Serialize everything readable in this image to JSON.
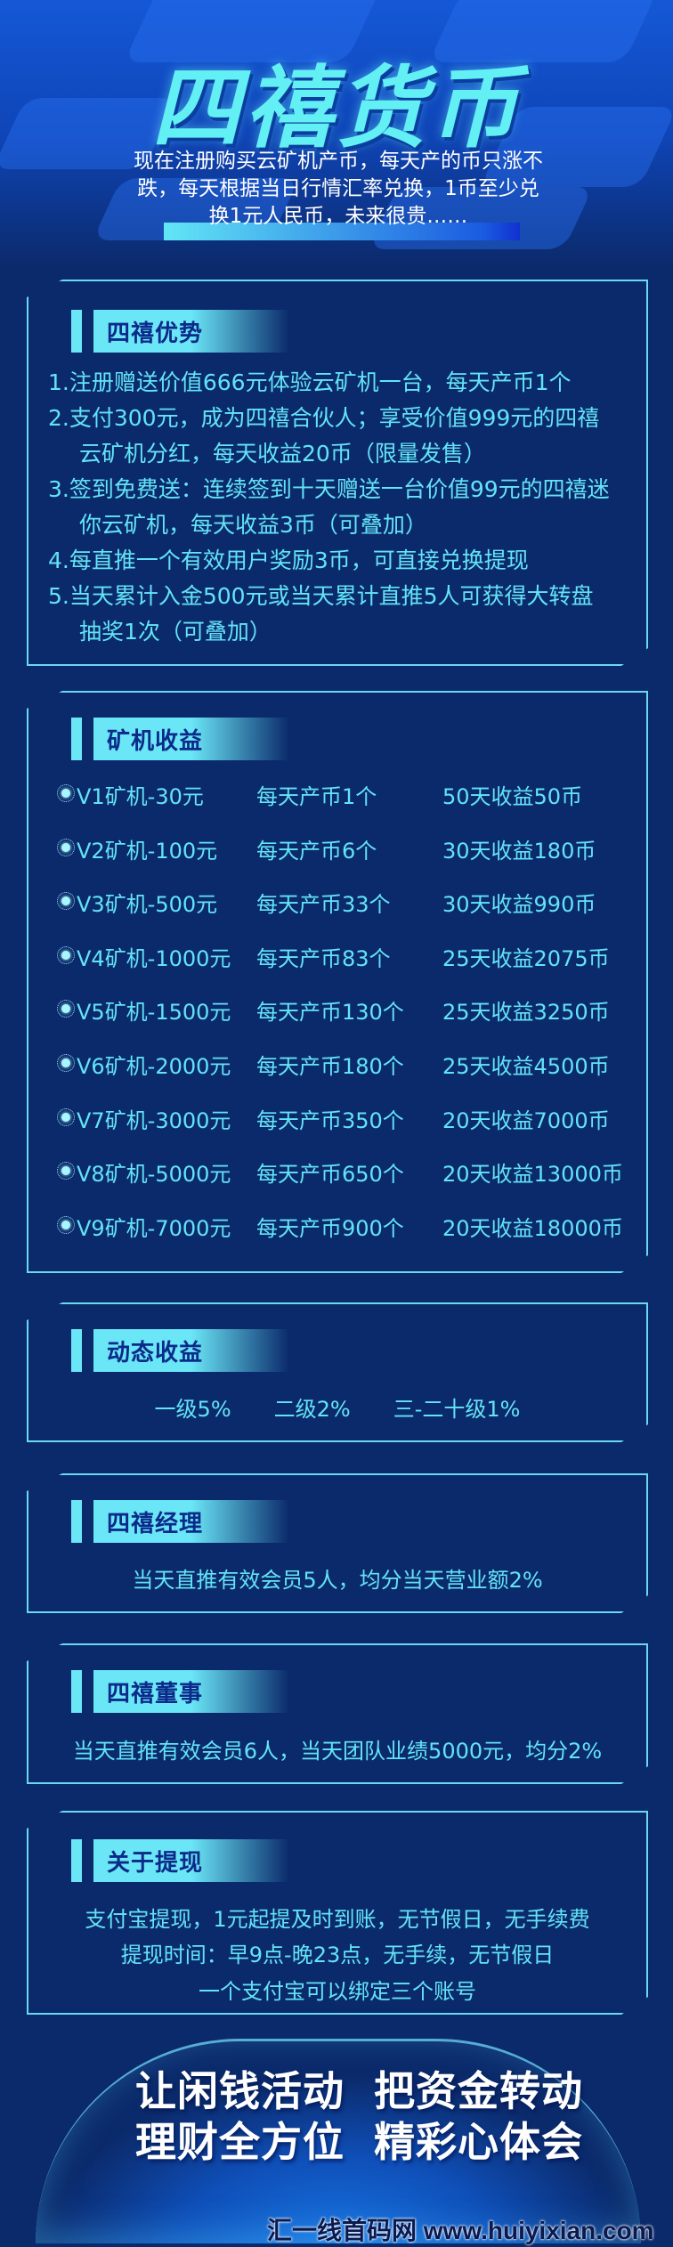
{
  "colors": {
    "background": "#0b2a6b",
    "accent": "#63e3f6",
    "header_text": "#0b2a8a"
  },
  "title": "四禧货币",
  "subtitle": [
    "现在注册购买云矿机产币，每天产的币只涨不",
    "跌，每天根据当日行情汇率兑换，1币至少兑",
    "换1元人民币，未来很贵……"
  ],
  "advantages": {
    "title": "四禧优势",
    "lines": [
      {
        "text": "1.注册赠送价值666元体验云矿机一台，每天产币1个",
        "indent": false
      },
      {
        "text": "2.支付300元，成为四禧合伙人；享受价值999元的四禧",
        "indent": false
      },
      {
        "text": "云矿机分红，每天收益20币（限量发售）",
        "indent": true
      },
      {
        "text": "3.签到免费送：连续签到十天赠送一台价值99元的四禧迷",
        "indent": false
      },
      {
        "text": "你云矿机，每天收益3币（可叠加）",
        "indent": true
      },
      {
        "text": "4.每直推一个有效用户奖励3币，可直接兑换提现",
        "indent": false
      },
      {
        "text": "5.当天累计入金500元或当天累计直推5人可获得大转盘",
        "indent": false
      },
      {
        "text": "抽奖1次（可叠加）",
        "indent": true
      }
    ]
  },
  "miners": {
    "title": "矿机收益",
    "rows": [
      {
        "name": "V1矿机-30元",
        "daily": "每天产币1个",
        "total": "50天收益50币"
      },
      {
        "name": "V2矿机-100元",
        "daily": "每天产币6个",
        "total": "30天收益180币"
      },
      {
        "name": "V3矿机-500元",
        "daily": "每天产币33个",
        "total": "30天收益990币"
      },
      {
        "name": "V4矿机-1000元",
        "daily": "每天产币83个",
        "total": "25天收益2075币"
      },
      {
        "name": "V5矿机-1500元",
        "daily": "每天产币130个",
        "total": "25天收益3250币"
      },
      {
        "name": "V6矿机-2000元",
        "daily": "每天产币180个",
        "total": "25天收益4500币"
      },
      {
        "name": "V7矿机-3000元",
        "daily": "每天产币350个",
        "total": "20天收益7000币"
      },
      {
        "name": "V8矿机-5000元",
        "daily": "每天产币650个",
        "total": "20天收益13000币"
      },
      {
        "name": "V9矿机-7000元",
        "daily": "每天产币900个",
        "total": "20天收益18000币"
      }
    ]
  },
  "dynamic": {
    "title": "动态收益",
    "text": "一级5%　　二级2%　　三-二十级1%"
  },
  "manager": {
    "title": "四禧经理",
    "text": "当天直推有效会员5人，均分当天营业额2%"
  },
  "director": {
    "title": "四禧董事",
    "text": "当天直推有效会员6人，当天团队业绩5000元，均分2%"
  },
  "withdraw": {
    "title": "关于提现",
    "lines": [
      "支付宝提现，1元起提及时到账，无节假日，无手续费",
      "提现时间：早9点-晚23点，无手续，无节假日",
      "一个支付宝可以绑定三个账号"
    ]
  },
  "slogans": [
    "让闲钱活动",
    "把资金转动",
    "理财全方位",
    "精彩心体会"
  ],
  "watermark": "汇一线首码网 www.huiyixian.com"
}
